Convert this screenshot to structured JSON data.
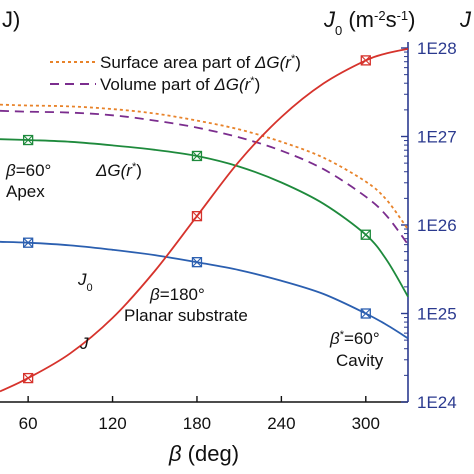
{
  "chart_data": {
    "type": "line",
    "xlabel_sym": "β",
    "xlabel_unit": " (deg)",
    "xlim": [
      40,
      330
    ],
    "x_ticks": [
      "60",
      "120",
      "180",
      "240",
      "300"
    ],
    "x_tick_values": [
      60,
      120,
      180,
      240,
      300
    ],
    "left_label_fragment": "J)",
    "right_axis": {
      "label_sym": "J",
      "label_sub": "0",
      "label_unit": " (m",
      "label_exp1": "-2",
      "label_mid": "s",
      "label_exp2": "-1",
      "label_close": ")",
      "label_tail": "J",
      "scale": "log",
      "ticks": [
        "1E24",
        "1E25",
        "1E26",
        "1E27",
        "1E28"
      ],
      "tick_values": [
        1e+24,
        1e+25,
        1e+26,
        1e+27,
        1e+28
      ],
      "color": "#2b3a8f"
    },
    "legend": [
      {
        "prefix": "Surface area part of ",
        "math": "ΔG(r",
        "sup": "*",
        "close": ")",
        "color": "#e8832a",
        "style": "dotted"
      },
      {
        "prefix": "Volume part of ",
        "math": "ΔG(r",
        "sup": "*",
        "close": ")",
        "color": "#7b2d8e",
        "style": "dashed"
      }
    ],
    "series": [
      {
        "name": "Surface area part of ΔG(r*)",
        "color": "#e8832a",
        "dash": "3,3",
        "markers": false,
        "x": [
          40,
          60,
          90,
          120,
          150,
          180,
          210,
          240,
          270,
          300,
          315,
          330
        ],
        "logy": [
          27.36,
          27.35,
          27.34,
          27.31,
          27.26,
          27.18,
          27.08,
          26.94,
          26.76,
          26.49,
          26.28,
          25.95
        ]
      },
      {
        "name": "Volume part of ΔG(r*)",
        "color": "#7b2d8e",
        "dash": "9,6",
        "markers": false,
        "x": [
          40,
          60,
          90,
          120,
          150,
          180,
          210,
          240,
          270,
          300,
          315,
          330
        ],
        "logy": [
          27.29,
          27.28,
          27.27,
          27.24,
          27.18,
          27.1,
          26.99,
          26.84,
          26.63,
          26.32,
          26.1,
          25.78
        ]
      },
      {
        "name": "ΔG(r*)",
        "color": "#1e8a3c",
        "dash": "",
        "markers": true,
        "marker_x": [
          60,
          180,
          300
        ],
        "x": [
          40,
          60,
          90,
          120,
          150,
          180,
          210,
          240,
          270,
          300,
          315,
          330
        ],
        "logy": [
          26.97,
          26.96,
          26.94,
          26.9,
          26.85,
          26.78,
          26.66,
          26.48,
          26.24,
          25.89,
          25.6,
          25.19
        ]
      },
      {
        "name": "J0",
        "color": "#2b5fb0",
        "dash": "",
        "markers": true,
        "marker_x": [
          60,
          180,
          300
        ],
        "x": [
          40,
          60,
          90,
          120,
          150,
          180,
          210,
          240,
          270,
          300,
          315,
          330
        ],
        "logy": [
          25.81,
          25.8,
          25.77,
          25.72,
          25.66,
          25.58,
          25.49,
          25.37,
          25.22,
          25.0,
          24.87,
          24.72
        ]
      },
      {
        "name": "J",
        "color": "#d6332c",
        "dash": "",
        "markers": true,
        "marker_x": [
          60,
          180,
          300
        ],
        "x": [
          40,
          60,
          90,
          120,
          150,
          180,
          210,
          240,
          270,
          300,
          315,
          330
        ],
        "logy": [
          24.12,
          24.27,
          24.55,
          24.95,
          25.48,
          26.1,
          26.72,
          27.22,
          27.6,
          27.86,
          27.94,
          27.99
        ]
      }
    ],
    "annotations": [
      {
        "id": "apex",
        "line1_sym": "β",
        "line1_rest": "=60°",
        "line2": "Apex",
        "x": 60,
        "logy": 26.55
      },
      {
        "id": "dg",
        "sym": "ΔG(r",
        "sup": "*",
        "close": ")",
        "x": 95,
        "logy": 26.55
      },
      {
        "id": "j0",
        "sym": "J",
        "sub": "0",
        "x": 110,
        "logy": 25.25
      },
      {
        "id": "planar",
        "line1_sym": "β",
        "line1_rest": "=180°",
        "line2": "Planar substrate",
        "x": 180,
        "logy": 25.45
      },
      {
        "id": "j",
        "sym": "J",
        "x": 112,
        "logy": 24.55
      },
      {
        "id": "cavity",
        "line1_sym": "β",
        "line1_sup": "*",
        "line1_rest": "=60°",
        "line2": "Cavity",
        "x": 305,
        "logy": 24.82
      }
    ]
  }
}
